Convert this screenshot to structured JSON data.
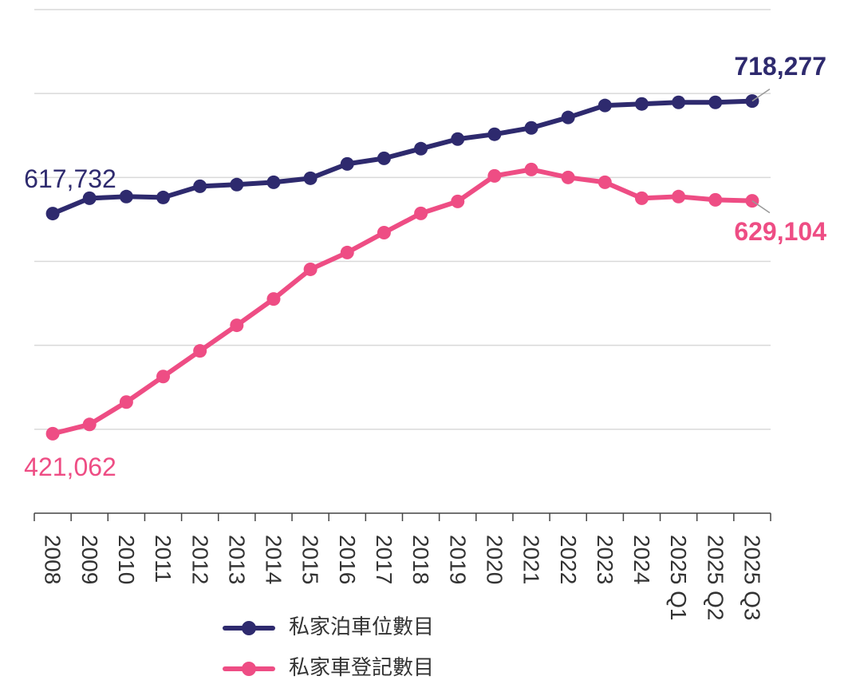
{
  "chart_data": {
    "type": "line",
    "categories": [
      "2008",
      "2009",
      "2010",
      "2011",
      "2012",
      "2013",
      "2014",
      "2015",
      "2016",
      "2017",
      "2018",
      "2019",
      "2020",
      "2021",
      "2022",
      "2023",
      "2024",
      "2025 Q1",
      "2025 Q2",
      "2025 Q3"
    ],
    "series": [
      {
        "name": "私家泊車位數目",
        "color": "#2e2a6e",
        "values": [
          617732,
          631400,
          632900,
          632100,
          642100,
          643600,
          645700,
          649300,
          662100,
          667100,
          675700,
          684300,
          688600,
          694300,
          703600,
          714300,
          715700,
          717100,
          717100,
          718277
        ],
        "value_labels": [
          "617,732",
          null,
          null,
          null,
          null,
          null,
          null,
          null,
          null,
          null,
          null,
          null,
          null,
          null,
          null,
          null,
          null,
          null,
          null,
          "718,277"
        ]
      },
      {
        "name": "私家車登記數目",
        "color": "#ee4d84",
        "values": [
          421062,
          429300,
          449300,
          472100,
          495000,
          517900,
          541400,
          567900,
          582900,
          600700,
          617900,
          628600,
          651400,
          657100,
          650000,
          645700,
          631400,
          632900,
          630000,
          629104
        ],
        "value_labels": [
          "421,062",
          null,
          null,
          null,
          null,
          null,
          null,
          null,
          null,
          null,
          null,
          null,
          null,
          null,
          null,
          null,
          null,
          null,
          null,
          "629,104"
        ]
      }
    ],
    "ylim": [
      350000,
      800000
    ],
    "yticks": [
      425000,
      500000,
      575000,
      650000,
      725000,
      800000
    ],
    "grid": true
  }
}
